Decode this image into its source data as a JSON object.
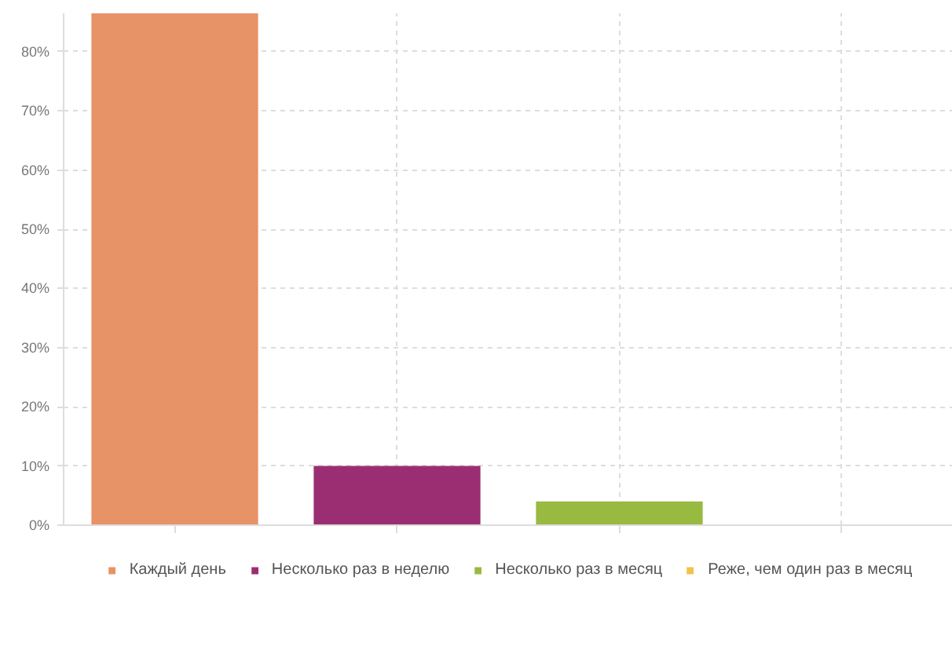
{
  "chart_data": {
    "type": "bar",
    "categories": [
      null,
      null,
      null,
      null
    ],
    "series": [
      {
        "name": "Каждый день",
        "color": "#e89267",
        "values": [
          86.5,
          null,
          null,
          null
        ]
      },
      {
        "name": "Несколько раз в неделю",
        "color": "#9b2e73",
        "values": [
          null,
          10,
          null,
          null
        ]
      },
      {
        "name": "Несколько раз в месяц",
        "color": "#98ba41",
        "values": [
          null,
          null,
          4,
          null
        ]
      },
      {
        "name": "Реже, чем один раз в месяц",
        "color": "#f2c14e",
        "values": [
          null,
          null,
          null,
          0
        ]
      }
    ],
    "ylim": [
      0,
      86.5
    ],
    "yticks": [
      {
        "value": 0,
        "label": "0%"
      },
      {
        "value": 10,
        "label": "10%"
      },
      {
        "value": 20,
        "label": "20%"
      },
      {
        "value": 30,
        "label": "30%"
      },
      {
        "value": 40,
        "label": "40%"
      },
      {
        "value": 50,
        "label": "50%"
      },
      {
        "value": 60,
        "label": "60%"
      },
      {
        "value": 70,
        "label": "70%"
      },
      {
        "value": 80,
        "label": "80%"
      }
    ],
    "grid": true,
    "legend": "bottom",
    "tick_labels": "y"
  }
}
